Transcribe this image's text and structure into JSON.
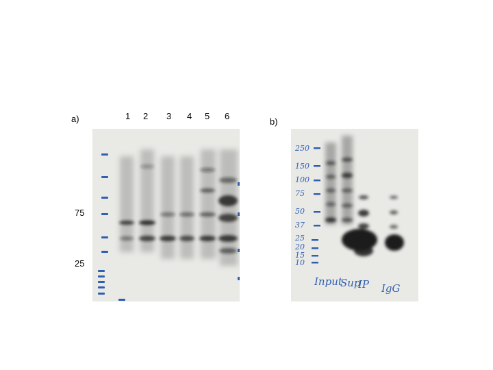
{
  "panel_a": {
    "label": "a)",
    "lanes": [
      "1",
      "2",
      "3",
      "4",
      "5",
      "6"
    ],
    "markers": [
      "75",
      "25"
    ]
  },
  "panel_b": {
    "label": "b)",
    "markers": [
      "250",
      "150",
      "100",
      "75",
      "50",
      "37",
      "25",
      "20",
      "15",
      "10"
    ],
    "lanes": [
      "Input",
      "Sup",
      "IP",
      "IgG"
    ]
  },
  "colors": {
    "ink": "#2f5fb0",
    "membrane": "#e9e9e6",
    "band": "#1c1c1c"
  }
}
